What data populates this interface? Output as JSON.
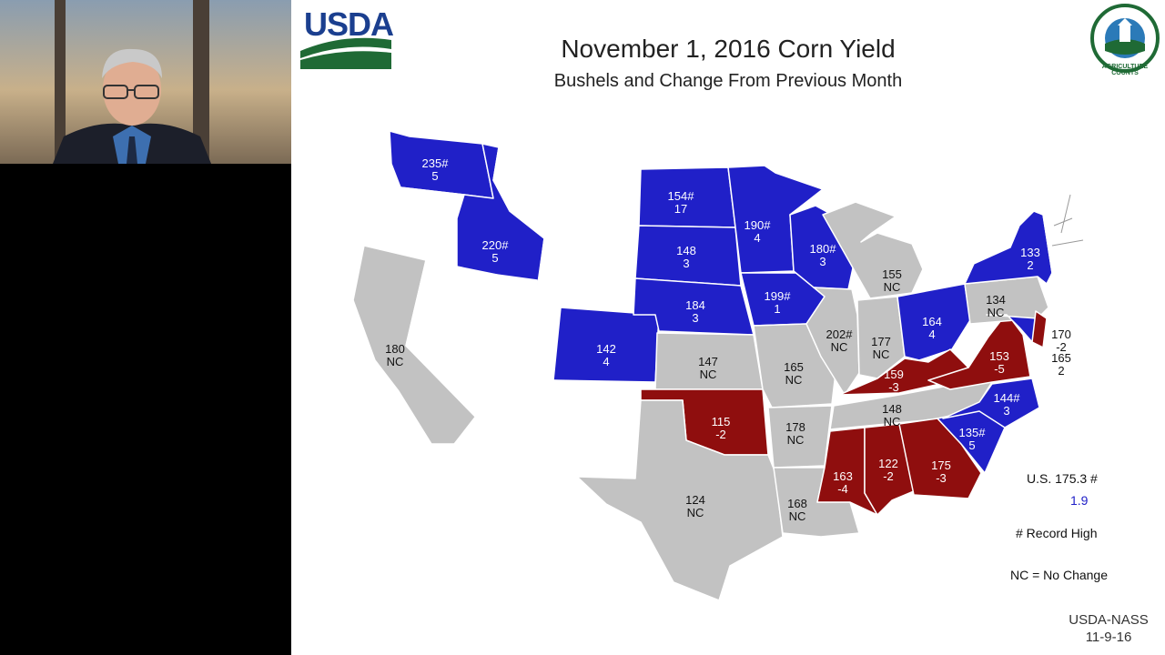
{
  "slide": {
    "title": "November 1, 2016 Corn Yield",
    "subtitle": "Bushels and Change From Previous Month",
    "logo_left": "USDA",
    "logo_right": "AGRICULTURE COUNTS",
    "footer_line1": "USDA-NASS",
    "footer_line2": "11-9-16"
  },
  "legend": {
    "us_label": "U.S. 175.3 #",
    "us_change": "1.9",
    "record_note": "# Record High",
    "nc_note": "NC = No Change"
  },
  "colors": {
    "increase": "#2020c8",
    "decrease": "#8f0e0e",
    "no_change": "#c2c2c2",
    "not_estimated": "#ffffff",
    "legend_change_text": "#2020c8"
  },
  "states": {
    "wa": {
      "yield": "235#",
      "change": "5",
      "category": "increase"
    },
    "id": {
      "yield": "220#",
      "change": "5",
      "category": "increase"
    },
    "nd": {
      "yield": "154#",
      "change": "17",
      "category": "increase"
    },
    "sd": {
      "yield": "148",
      "change": "3",
      "category": "increase"
    },
    "mn": {
      "yield": "190#",
      "change": "4",
      "category": "increase"
    },
    "wi": {
      "yield": "180#",
      "change": "3",
      "category": "increase"
    },
    "ia": {
      "yield": "199#",
      "change": "1",
      "category": "increase"
    },
    "ne": {
      "yield": "184",
      "change": "3",
      "category": "increase"
    },
    "co": {
      "yield": "142",
      "change": "4",
      "category": "increase"
    },
    "oh": {
      "yield": "164",
      "change": "4",
      "category": "increase"
    },
    "ny": {
      "yield": "133",
      "change": "2",
      "category": "increase"
    },
    "nc": {
      "yield": "144#",
      "change": "3",
      "category": "increase"
    },
    "sc": {
      "yield": "135#",
      "change": "5",
      "category": "increase"
    },
    "md": {
      "yield": "165",
      "change": "2",
      "category": "increase"
    },
    "ca": {
      "yield": "180",
      "change": "NC",
      "category": "no_change"
    },
    "mi": {
      "yield": "155",
      "change": "NC",
      "category": "no_change"
    },
    "pa": {
      "yield": "134",
      "change": "NC",
      "category": "no_change"
    },
    "il": {
      "yield": "202#",
      "change": "NC",
      "category": "no_change"
    },
    "in": {
      "yield": "177",
      "change": "NC",
      "category": "no_change"
    },
    "ks": {
      "yield": "147",
      "change": "NC",
      "category": "no_change"
    },
    "mo": {
      "yield": "165",
      "change": "NC",
      "category": "no_change"
    },
    "ar": {
      "yield": "178",
      "change": "NC",
      "category": "no_change"
    },
    "tn": {
      "yield": "148",
      "change": "NC",
      "category": "no_change"
    },
    "tx": {
      "yield": "124",
      "change": "NC",
      "category": "no_change"
    },
    "la": {
      "yield": "168",
      "change": "NC",
      "category": "no_change"
    },
    "ok": {
      "yield": "115",
      "change": "-2",
      "category": "decrease"
    },
    "ky": {
      "yield": "159",
      "change": "-3",
      "category": "decrease"
    },
    "va": {
      "yield": "153",
      "change": "-5",
      "category": "decrease"
    },
    "ms": {
      "yield": "163",
      "change": "-4",
      "category": "decrease"
    },
    "al": {
      "yield": "122",
      "change": "-2",
      "category": "decrease"
    },
    "ga": {
      "yield": "175",
      "change": "-3",
      "category": "decrease"
    },
    "de": {
      "yield": "170",
      "change": "-2",
      "category": "decrease"
    }
  }
}
